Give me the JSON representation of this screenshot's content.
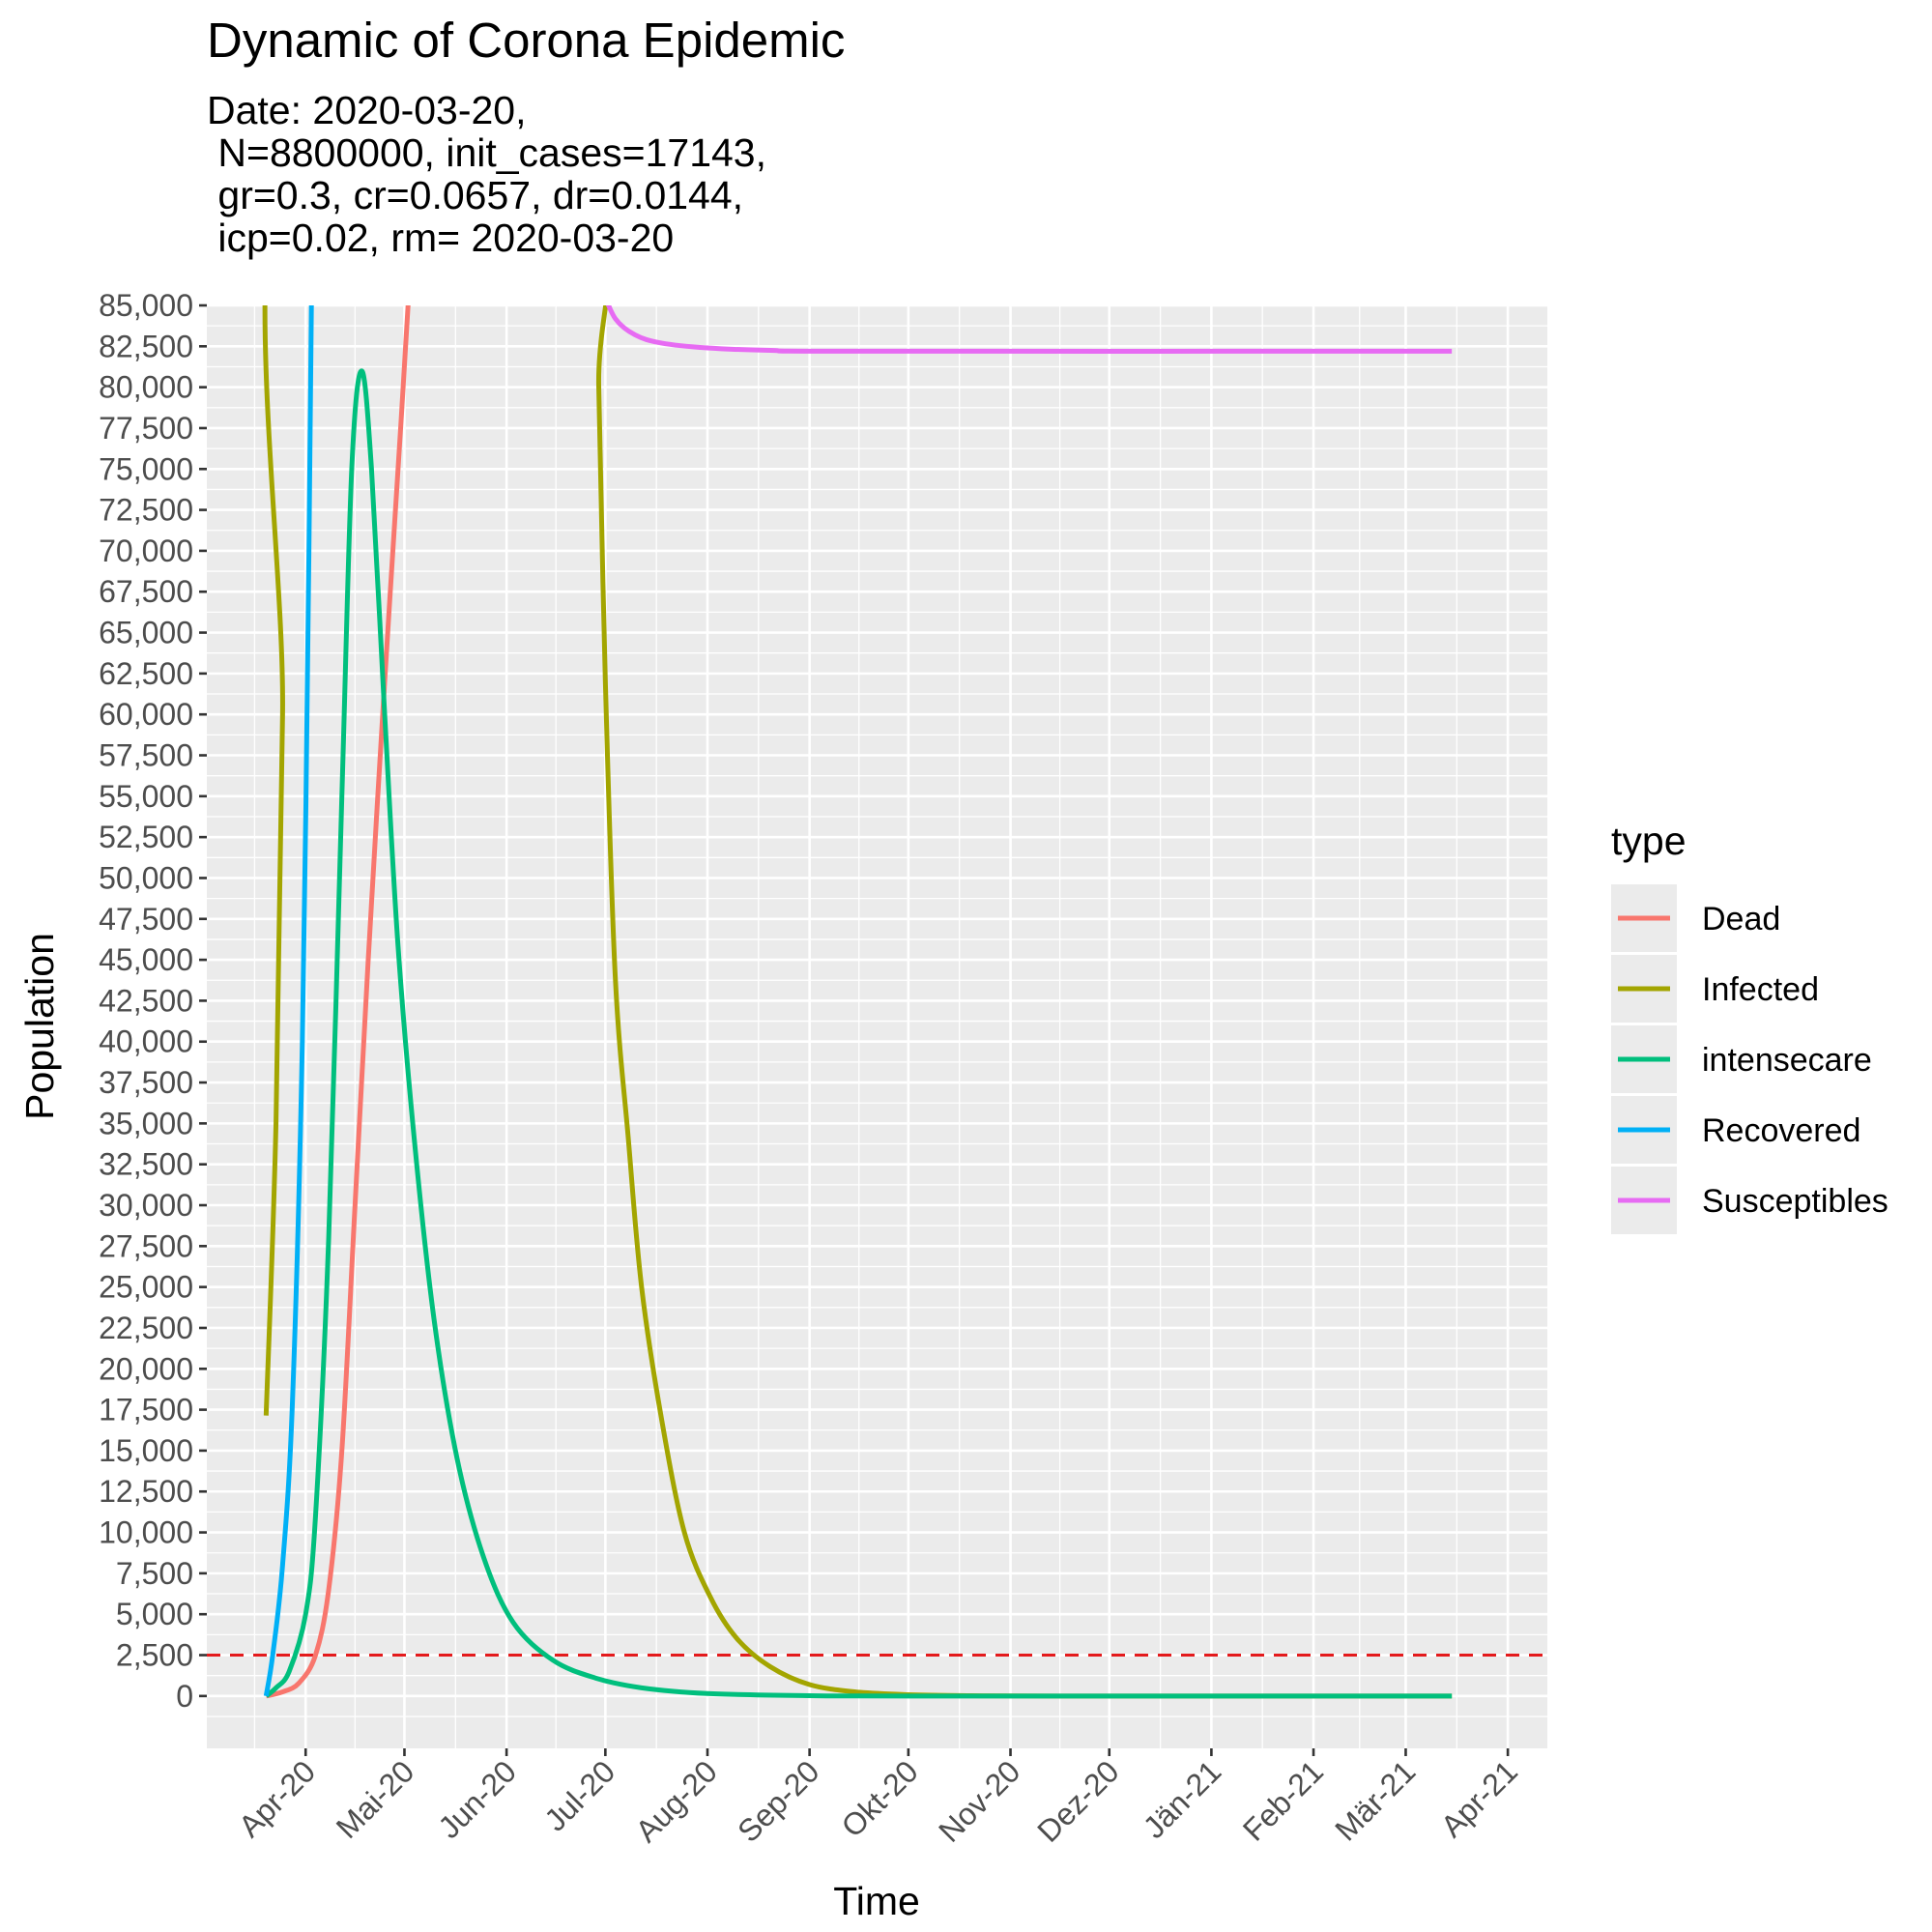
{
  "chart_data": {
    "type": "line",
    "title": "Dynamic of Corona Epidemic",
    "subtitle": "Date: 2020-03-20,\n N=8800000, init_cases=17143,\n gr=0.3, cr=0.0657, dr=0.0144,\n icp=0.02, rm= 2020-03-20",
    "xlabel": "Time",
    "ylabel": "Population",
    "xlim": [
      "2020-03-02",
      "2021-04-13"
    ],
    "ylim": [
      -3200,
      85000
    ],
    "x_ticks": [
      {
        "date": "2020-04-01",
        "label": "Apr-20"
      },
      {
        "date": "2020-05-01",
        "label": "Mai-20"
      },
      {
        "date": "2020-06-01",
        "label": "Jun-20"
      },
      {
        "date": "2020-07-01",
        "label": "Jul-20"
      },
      {
        "date": "2020-08-01",
        "label": "Aug-20"
      },
      {
        "date": "2020-09-01",
        "label": "Sep-20"
      },
      {
        "date": "2020-10-01",
        "label": "Okt-20"
      },
      {
        "date": "2020-11-01",
        "label": "Nov-20"
      },
      {
        "date": "2020-12-01",
        "label": "Dez-20"
      },
      {
        "date": "2021-01-01",
        "label": "Jän-21"
      },
      {
        "date": "2021-02-01",
        "label": "Feb-21"
      },
      {
        "date": "2021-03-01",
        "label": "Mär-21"
      },
      {
        "date": "2021-04-01",
        "label": "Apr-21"
      }
    ],
    "y_ticks": [
      0,
      2500,
      5000,
      7500,
      10000,
      12500,
      15000,
      17500,
      20000,
      22500,
      25000,
      27500,
      30000,
      32500,
      35000,
      37500,
      40000,
      42500,
      45000,
      47500,
      50000,
      52500,
      55000,
      57500,
      60000,
      62500,
      65000,
      67500,
      70000,
      72500,
      75000,
      77500,
      80000,
      82500,
      85000
    ],
    "y_tick_labels": [
      "0",
      "2,500",
      "5,000",
      "7,500",
      "10,000",
      "12,500",
      "15,000",
      "17,500",
      "20,000",
      "22,500",
      "25,000",
      "27,500",
      "30,000",
      "32,500",
      "35,000",
      "37,500",
      "40,000",
      "42,500",
      "45,000",
      "47,500",
      "50,000",
      "52,500",
      "55,000",
      "57,500",
      "60,000",
      "62,500",
      "65,000",
      "67,500",
      "70,000",
      "72,500",
      "75,000",
      "77,500",
      "80,000",
      "82,500",
      "85,000"
    ],
    "grid": true,
    "legend": {
      "title": "type",
      "position": "right"
    },
    "hline": {
      "y": 2500,
      "color": "#e41a1c",
      "style": "dashed"
    },
    "series": [
      {
        "name": "Dead",
        "color": "#F8766D",
        "points": [
          [
            "2020-03-20",
            0
          ],
          [
            "2020-03-25",
            250
          ],
          [
            "2020-03-30",
            800
          ],
          [
            "2020-04-04",
            2500
          ],
          [
            "2020-04-08",
            6500
          ],
          [
            "2020-04-12",
            15000
          ],
          [
            "2020-04-16",
            30000
          ],
          [
            "2020-04-20",
            45000
          ],
          [
            "2020-04-25",
            62000
          ],
          [
            "2020-04-30",
            78000
          ],
          [
            "2020-05-03",
            88000
          ]
        ]
      },
      {
        "name": "Infected",
        "color": "#A3A500",
        "points": [
          [
            "2020-03-20",
            17143
          ],
          [
            "2020-03-23",
            35000
          ],
          [
            "2020-03-25",
            60000
          ],
          [
            "2020-03-27",
            95000
          ],
          [
            "2020-06-27",
            95000
          ],
          [
            "2020-06-29",
            80000
          ],
          [
            "2020-07-01",
            62000
          ],
          [
            "2020-07-04",
            44000
          ],
          [
            "2020-07-08",
            34000
          ],
          [
            "2020-07-12",
            25000
          ],
          [
            "2020-07-18",
            17000
          ],
          [
            "2020-07-25",
            10000
          ],
          [
            "2020-08-02",
            6000
          ],
          [
            "2020-08-10",
            3500
          ],
          [
            "2020-08-20",
            1800
          ],
          [
            "2020-09-01",
            700
          ],
          [
            "2020-09-15",
            250
          ],
          [
            "2020-10-01",
            80
          ],
          [
            "2020-10-20",
            20
          ],
          [
            "2020-11-15",
            0
          ],
          [
            "2021-03-15",
            0
          ]
        ]
      },
      {
        "name": "intensecare",
        "color": "#00BF7D",
        "points": [
          [
            "2020-03-20",
            0
          ],
          [
            "2020-03-23",
            500
          ],
          [
            "2020-03-27",
            1500
          ],
          [
            "2020-04-01",
            5000
          ],
          [
            "2020-04-04",
            11000
          ],
          [
            "2020-04-08",
            28000
          ],
          [
            "2020-04-12",
            55000
          ],
          [
            "2020-04-15",
            75000
          ],
          [
            "2020-04-18",
            81000
          ],
          [
            "2020-04-21",
            75000
          ],
          [
            "2020-04-25",
            60000
          ],
          [
            "2020-04-29",
            46000
          ],
          [
            "2020-05-04",
            34000
          ],
          [
            "2020-05-10",
            23000
          ],
          [
            "2020-05-17",
            14500
          ],
          [
            "2020-05-25",
            8500
          ],
          [
            "2020-06-03",
            4500
          ],
          [
            "2020-06-15",
            2200
          ],
          [
            "2020-06-28",
            1100
          ],
          [
            "2020-07-12",
            500
          ],
          [
            "2020-08-01",
            150
          ],
          [
            "2020-09-01",
            20
          ],
          [
            "2020-10-01",
            0
          ],
          [
            "2021-03-15",
            0
          ]
        ]
      },
      {
        "name": "Recovered",
        "color": "#00B0F6",
        "points": [
          [
            "2020-03-20",
            0
          ],
          [
            "2020-03-22",
            2500
          ],
          [
            "2020-03-25",
            8000
          ],
          [
            "2020-03-28",
            18000
          ],
          [
            "2020-03-31",
            40000
          ],
          [
            "2020-04-02",
            70000
          ],
          [
            "2020-04-03",
            90000
          ]
        ]
      },
      {
        "name": "Susceptibles",
        "color": "#E76BF3",
        "points": [
          [
            "2020-06-30",
            86000
          ],
          [
            "2020-07-04",
            84200
          ],
          [
            "2020-07-10",
            83200
          ],
          [
            "2020-07-18",
            82700
          ],
          [
            "2020-08-01",
            82400
          ],
          [
            "2020-08-20",
            82250
          ],
          [
            "2020-09-15",
            82200
          ],
          [
            "2021-03-15",
            82200
          ]
        ]
      }
    ]
  }
}
